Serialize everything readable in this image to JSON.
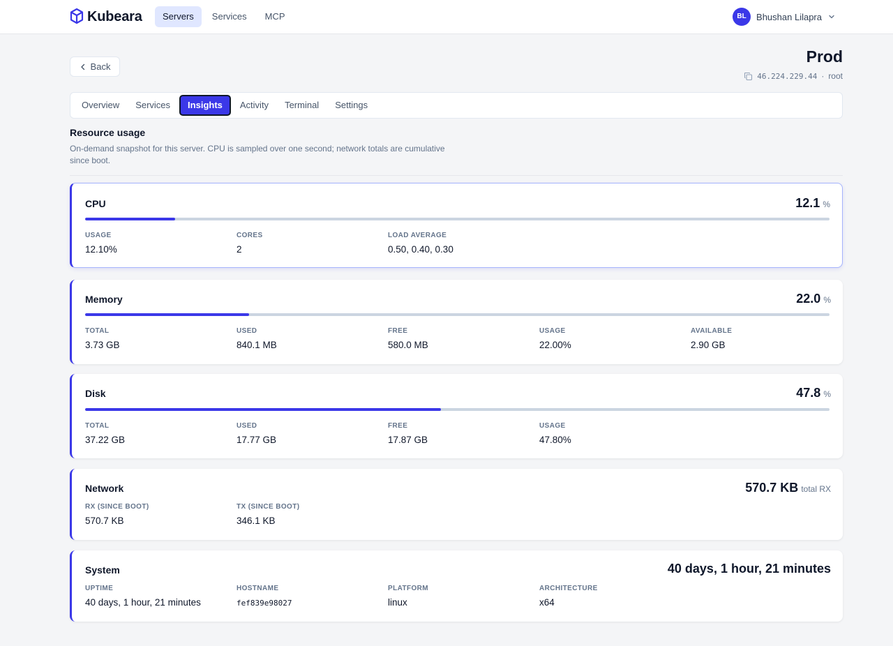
{
  "app": {
    "name": "Kubeara"
  },
  "nav": {
    "items": [
      {
        "label": "Servers",
        "active": true
      },
      {
        "label": "Services",
        "active": false
      },
      {
        "label": "MCP",
        "active": false
      }
    ]
  },
  "user": {
    "initials": "BL",
    "name": "Bhushan Lilapra"
  },
  "header": {
    "back_label": "Back",
    "server_name": "Prod",
    "ip": "46.224.229.44",
    "separator": "·",
    "login_user": "root"
  },
  "tabs": [
    {
      "label": "Overview",
      "active": false
    },
    {
      "label": "Services",
      "active": false
    },
    {
      "label": "Insights",
      "active": true
    },
    {
      "label": "Activity",
      "active": false
    },
    {
      "label": "Terminal",
      "active": false
    },
    {
      "label": "Settings",
      "active": false
    }
  ],
  "section": {
    "title": "Resource usage",
    "description": "On-demand snapshot for this server. CPU is sampled over one second; network totals are cumulative since boot."
  },
  "cpu": {
    "title": "CPU",
    "value": "12.1",
    "unit": "%",
    "percent": 12.1,
    "stats": [
      {
        "label": "USAGE",
        "value": "12.10%"
      },
      {
        "label": "CORES",
        "value": "2"
      },
      {
        "label": "LOAD AVERAGE",
        "value": "0.50, 0.40, 0.30"
      }
    ]
  },
  "memory": {
    "title": "Memory",
    "value": "22.0",
    "unit": "%",
    "percent": 22.0,
    "stats": [
      {
        "label": "TOTAL",
        "value": "3.73 GB"
      },
      {
        "label": "USED",
        "value": "840.1 MB"
      },
      {
        "label": "FREE",
        "value": "580.0 MB"
      },
      {
        "label": "USAGE",
        "value": "22.00%"
      },
      {
        "label": "AVAILABLE",
        "value": "2.90 GB"
      }
    ]
  },
  "disk": {
    "title": "Disk",
    "value": "47.8",
    "unit": "%",
    "percent": 47.8,
    "stats": [
      {
        "label": "TOTAL",
        "value": "37.22 GB"
      },
      {
        "label": "USED",
        "value": "17.77 GB"
      },
      {
        "label": "FREE",
        "value": "17.87 GB"
      },
      {
        "label": "USAGE",
        "value": "47.80%"
      }
    ]
  },
  "network": {
    "title": "Network",
    "value": "570.7 KB",
    "unit": "total RX",
    "stats": [
      {
        "label": "RX (SINCE BOOT)",
        "value": "570.7 KB"
      },
      {
        "label": "TX (SINCE BOOT)",
        "value": "346.1 KB"
      }
    ]
  },
  "system": {
    "title": "System",
    "value": "40 days, 1 hour, 21 minutes",
    "stats": [
      {
        "label": "UPTIME",
        "value": "40 days, 1 hour, 21 minutes"
      },
      {
        "label": "HOSTNAME",
        "value": "fef839e98027"
      },
      {
        "label": "PLATFORM",
        "value": "linux"
      },
      {
        "label": "ARCHITECTURE",
        "value": "x64"
      }
    ]
  },
  "colors": {
    "accent": "#3b38e8",
    "track": "#cbd5e1",
    "text": "#0f172a",
    "muted": "#64748b"
  }
}
